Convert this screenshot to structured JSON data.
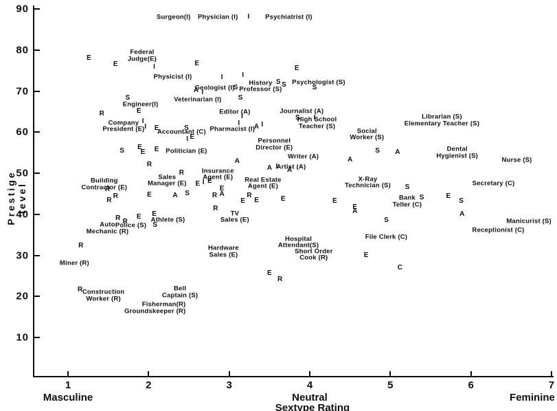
{
  "figure": {
    "background": "#ffffff",
    "ink_color": "#0d0d0d"
  },
  "axes": {
    "y": {
      "title": "Prestige level",
      "ticks": [
        90,
        80,
        70,
        60,
        50,
        40,
        30,
        20,
        10
      ]
    },
    "x": {
      "title": "Sextype Rating",
      "ticks": [
        1,
        2,
        3,
        4,
        5,
        6,
        7
      ],
      "left_word": "Masculine",
      "center_word": "Neutral",
      "right_word": "Feminine"
    }
  },
  "chart_data": {
    "type": "scatter",
    "title": "",
    "xlabel": "Sextype Rating",
    "ylabel": "Prestige level",
    "xlim": [
      1,
      7
    ],
    "ylim": [
      0,
      90
    ],
    "grid": false,
    "legend_position": "none",
    "point_symbols": "Holland code letters: R, I, A, S, E, C",
    "labeled_points": [
      {
        "name": "Surgeon",
        "code": "I",
        "label": "Surgeon(I)",
        "x": 2.31,
        "y": 88.0
      },
      {
        "name": "Physician",
        "code": "I",
        "label": "Physician (I)",
        "x": 2.86,
        "y": 88.0
      },
      {
        "name": "Psychiatrist",
        "code": "I",
        "label": "Psychiatrist (I)",
        "x": 3.74,
        "y": 88.0
      },
      {
        "name": "Federal Judge",
        "code": "E",
        "label": "Federal\nJudge(E)",
        "x": 1.92,
        "y": 78.6
      },
      {
        "name": "Physicist",
        "code": "I",
        "label": "Physicist (I)",
        "x": 2.3,
        "y": 73.4
      },
      {
        "name": "Geologist",
        "code": "I",
        "label": "Geologist (I)",
        "x": 2.82,
        "y": 70.8
      },
      {
        "name": "History Professor",
        "code": "S",
        "label": "History\nProfessor (S)",
        "x": 3.39,
        "y": 71.1
      },
      {
        "name": "Psychologist",
        "code": "S",
        "label": "Psychologist (S)",
        "x": 4.11,
        "y": 72.1
      },
      {
        "name": "Veterinarian",
        "code": "I",
        "label": "Veterinarian (I)",
        "x": 2.61,
        "y": 67.9
      },
      {
        "name": "Engineer",
        "code": "I",
        "label": "Engineer(I)",
        "x": 1.9,
        "y": 66.7
      },
      {
        "name": "Editor",
        "code": "A",
        "label": "Editor (A)",
        "x": 3.07,
        "y": 64.9
      },
      {
        "name": "Journalist",
        "code": "A",
        "label": "Journalist (A)",
        "x": 3.9,
        "y": 65.1
      },
      {
        "name": "High School Teacher",
        "code": "S",
        "label": "High School\nTeacher (S)",
        "x": 4.09,
        "y": 62.2
      },
      {
        "name": "Company President",
        "code": "E",
        "label": "Company\nPresident (E)",
        "x": 1.69,
        "y": 61.4
      },
      {
        "name": "Accountant",
        "code": "C",
        "label": "Accountant (C)",
        "x": 2.41,
        "y": 60.0
      },
      {
        "name": "Pharmacist",
        "code": "I",
        "label": "Pharmacist (I)",
        "x": 3.04,
        "y": 60.7
      },
      {
        "name": "Politician",
        "code": "E",
        "label": "Politician (E)",
        "x": 2.47,
        "y": 55.4
      },
      {
        "name": "Social Worker",
        "code": "S",
        "label": "Social\nWorker (S)",
        "x": 4.71,
        "y": 59.4
      },
      {
        "name": "Librarian",
        "code": "S",
        "label": "Librarian (S)",
        "x": 5.64,
        "y": 63.7
      },
      {
        "name": "Elementary Teacher",
        "code": "S",
        "label": "Elementary Teacher (S)",
        "x": 5.64,
        "y": 62.0
      },
      {
        "name": "Personnel Director",
        "code": "E",
        "label": "Personnel\nDirector (E)",
        "x": 3.56,
        "y": 57.0
      },
      {
        "name": "Dental Hygienist",
        "code": "S",
        "label": "Dental\nHygienist (S)",
        "x": 5.83,
        "y": 55.0
      },
      {
        "name": "Writer",
        "code": "A",
        "label": "Writer (A)",
        "x": 3.92,
        "y": 54.0
      },
      {
        "name": "Artist",
        "code": "A",
        "label": "Artist (A)",
        "x": 3.77,
        "y": 51.5
      },
      {
        "name": "Nurse",
        "code": "S",
        "label": "Nurse (S)",
        "x": 6.57,
        "y": 53.2
      },
      {
        "name": "Building Contractor",
        "code": "E",
        "label": "Building\nContractor (E)",
        "x": 1.45,
        "y": 47.3
      },
      {
        "name": "Sales Manager",
        "code": "E",
        "label": "Sales\nManager (E)",
        "x": 2.23,
        "y": 48.2
      },
      {
        "name": "Insurance Agent",
        "code": "E",
        "label": "Insurance\nAgent (E)",
        "x": 2.86,
        "y": 49.7
      },
      {
        "name": "Real Estate Agent",
        "code": "E",
        "label": "Real Estate\nAgent (E)",
        "x": 3.42,
        "y": 47.5
      },
      {
        "name": "X-Ray Technician",
        "code": "S",
        "label": "X-Ray\nTechnician (S)",
        "x": 4.72,
        "y": 47.7
      },
      {
        "name": "Secretary",
        "code": "C",
        "label": "Secretary (C)",
        "x": 6.28,
        "y": 47.5
      },
      {
        "name": "Bank Teller",
        "code": "C",
        "label": "Bank\nTeller (C)",
        "x": 5.21,
        "y": 43.1
      },
      {
        "name": "Manicurist",
        "code": "S",
        "label": "Manicurist (S)",
        "x": 6.72,
        "y": 38.3
      },
      {
        "name": "Receptionist",
        "code": "C",
        "label": "Receptionist (C)",
        "x": 6.34,
        "y": 36.1
      },
      {
        "name": "File Clerk",
        "code": "C",
        "label": "File Clerk (C)",
        "x": 4.95,
        "y": 34.4
      },
      {
        "name": "Athlete",
        "code": "S",
        "label": "Athlete (S)",
        "x": 2.24,
        "y": 38.6
      },
      {
        "name": "Police",
        "code": "S",
        "label": "Police (S)",
        "x": 1.78,
        "y": 37.3
      },
      {
        "name": "Auto Mechanic",
        "code": "R",
        "label": "Auto\nMechanic (R)",
        "x": 1.49,
        "y": 36.6
      },
      {
        "name": "TV Sales",
        "code": "E",
        "label": "TV\nSales (E)",
        "x": 3.07,
        "y": 39.3
      },
      {
        "name": "Hardware Sales",
        "code": "E",
        "label": "Hardware\nSales (E)",
        "x": 2.93,
        "y": 30.9
      },
      {
        "name": "Hospital Attendant",
        "code": "S",
        "label": "Hospital\nAttendant(S)",
        "x": 3.86,
        "y": 33.1
      },
      {
        "name": "Short Order Cook",
        "code": "R",
        "label": "Short Order\nCook (R)",
        "x": 4.05,
        "y": 30.1
      },
      {
        "name": "Miner",
        "code": "R",
        "label": "Miner (R)",
        "x": 1.08,
        "y": 28.1
      },
      {
        "name": "Construction Worker",
        "code": "R",
        "label": "Construction\nWorker (R)",
        "x": 1.44,
        "y": 20.2
      },
      {
        "name": "Bell Captain",
        "code": "S",
        "label": "Bell\nCaptain (S)",
        "x": 2.39,
        "y": 21.0
      },
      {
        "name": "Fisherman",
        "code": "R",
        "label": "Fisherman(R)",
        "x": 2.19,
        "y": 18.0
      },
      {
        "name": "Groundskeeper",
        "code": "R",
        "label": "Groundskeeper (R)",
        "x": 2.08,
        "y": 16.4
      }
    ],
    "unlabeled_points": [
      {
        "code": "I",
        "x": 3.24,
        "y": 88.0
      },
      {
        "code": "E",
        "x": 1.26,
        "y": 77.9
      },
      {
        "code": "E",
        "x": 1.59,
        "y": 76.4
      },
      {
        "code": "I",
        "x": 2.07,
        "y": 75.8
      },
      {
        "code": "E",
        "x": 2.6,
        "y": 76.6
      },
      {
        "code": "I",
        "x": 2.91,
        "y": 73.3
      },
      {
        "code": "I",
        "x": 3.17,
        "y": 73.8
      },
      {
        "code": "E",
        "x": 3.84,
        "y": 75.4
      },
      {
        "code": "S",
        "x": 3.08,
        "y": 70.8
      },
      {
        "code": "A",
        "x": 2.59,
        "y": 70.1
      },
      {
        "code": "I",
        "x": 2.67,
        "y": 69.6
      },
      {
        "code": "S",
        "x": 3.61,
        "y": 72.1
      },
      {
        "code": "S",
        "x": 3.68,
        "y": 71.4
      },
      {
        "code": "S",
        "x": 4.06,
        "y": 70.8
      },
      {
        "code": "S",
        "x": 3.14,
        "y": 68.2
      },
      {
        "code": "S",
        "x": 1.74,
        "y": 68.2
      },
      {
        "code": "E",
        "x": 1.88,
        "y": 65.1
      },
      {
        "code": "R",
        "x": 1.42,
        "y": 64.4
      },
      {
        "code": "I",
        "x": 1.93,
        "y": 62.6
      },
      {
        "code": "I",
        "x": 1.96,
        "y": 61.2
      },
      {
        "code": "E",
        "x": 2.1,
        "y": 60.9
      },
      {
        "code": "S",
        "x": 2.47,
        "y": 60.9
      },
      {
        "code": "I",
        "x": 2.48,
        "y": 58.2
      },
      {
        "code": "E",
        "x": 2.54,
        "y": 58.7
      },
      {
        "code": "I",
        "x": 3.16,
        "y": 63.7
      },
      {
        "code": "I",
        "x": 3.12,
        "y": 62.1
      },
      {
        "code": "A",
        "x": 3.34,
        "y": 61.2
      },
      {
        "code": "I",
        "x": 3.41,
        "y": 61.7
      },
      {
        "code": "S",
        "x": 3.85,
        "y": 63.4
      },
      {
        "code": "I",
        "x": 4.06,
        "y": 63.4
      },
      {
        "code": "S",
        "x": 1.67,
        "y": 55.4
      },
      {
        "code": "E",
        "x": 1.89,
        "y": 56.2
      },
      {
        "code": "E",
        "x": 1.93,
        "y": 55.0
      },
      {
        "code": "E",
        "x": 2.1,
        "y": 55.7
      },
      {
        "code": "A",
        "x": 3.1,
        "y": 52.8
      },
      {
        "code": "A",
        "x": 4.5,
        "y": 53.2
      },
      {
        "code": "S",
        "x": 4.84,
        "y": 55.4
      },
      {
        "code": "A",
        "x": 5.09,
        "y": 55.0
      },
      {
        "code": "A",
        "x": 3.5,
        "y": 51.2
      },
      {
        "code": "I",
        "x": 3.59,
        "y": 51.5
      },
      {
        "code": "A",
        "x": 3.75,
        "y": 50.7
      },
      {
        "code": "R",
        "x": 2.01,
        "y": 52.0
      },
      {
        "code": "R",
        "x": 2.41,
        "y": 50.0
      },
      {
        "code": "E",
        "x": 2.61,
        "y": 47.3
      },
      {
        "code": "I",
        "x": 2.68,
        "y": 47.7
      },
      {
        "code": "E",
        "x": 2.76,
        "y": 48.0
      },
      {
        "code": "R",
        "x": 1.49,
        "y": 46.0
      },
      {
        "code": "R",
        "x": 1.59,
        "y": 44.3
      },
      {
        "code": "R",
        "x": 1.51,
        "y": 43.3
      },
      {
        "code": "E",
        "x": 2.01,
        "y": 44.6
      },
      {
        "code": "A",
        "x": 2.33,
        "y": 44.5
      },
      {
        "code": "S",
        "x": 2.48,
        "y": 45.0
      },
      {
        "code": "R",
        "x": 2.82,
        "y": 44.5
      },
      {
        "code": "E",
        "x": 2.91,
        "y": 46.1
      },
      {
        "code": "A",
        "x": 2.91,
        "y": 44.8
      },
      {
        "code": "R",
        "x": 3.25,
        "y": 44.5
      },
      {
        "code": "E",
        "x": 3.17,
        "y": 43.1
      },
      {
        "code": "E",
        "x": 3.34,
        "y": 43.3
      },
      {
        "code": "E",
        "x": 3.67,
        "y": 43.6
      },
      {
        "code": "E",
        "x": 4.31,
        "y": 43.1
      },
      {
        "code": "E",
        "x": 4.56,
        "y": 41.6
      },
      {
        "code": "A",
        "x": 4.56,
        "y": 40.6
      },
      {
        "code": "R",
        "x": 2.83,
        "y": 41.3
      },
      {
        "code": "R",
        "x": 1.62,
        "y": 38.9
      },
      {
        "code": "R",
        "x": 1.71,
        "y": 38.1
      },
      {
        "code": "E",
        "x": 1.88,
        "y": 39.3
      },
      {
        "code": "E",
        "x": 2.07,
        "y": 40.0
      },
      {
        "code": "S",
        "x": 2.08,
        "y": 37.3
      },
      {
        "code": "S",
        "x": 5.21,
        "y": 46.5
      },
      {
        "code": "S",
        "x": 5.39,
        "y": 44.0
      },
      {
        "code": "E",
        "x": 5.72,
        "y": 44.3
      },
      {
        "code": "S",
        "x": 5.88,
        "y": 43.1
      },
      {
        "code": "A",
        "x": 5.89,
        "y": 40.0
      },
      {
        "code": "S",
        "x": 4.95,
        "y": 38.5
      },
      {
        "code": "E",
        "x": 4.7,
        "y": 29.9
      },
      {
        "code": "C",
        "x": 5.12,
        "y": 26.9
      },
      {
        "code": "E",
        "x": 3.5,
        "y": 25.6
      },
      {
        "code": "R",
        "x": 3.63,
        "y": 24.1
      },
      {
        "code": "R",
        "x": 1.16,
        "y": 32.3
      },
      {
        "code": "R",
        "x": 1.15,
        "y": 21.6
      }
    ]
  }
}
